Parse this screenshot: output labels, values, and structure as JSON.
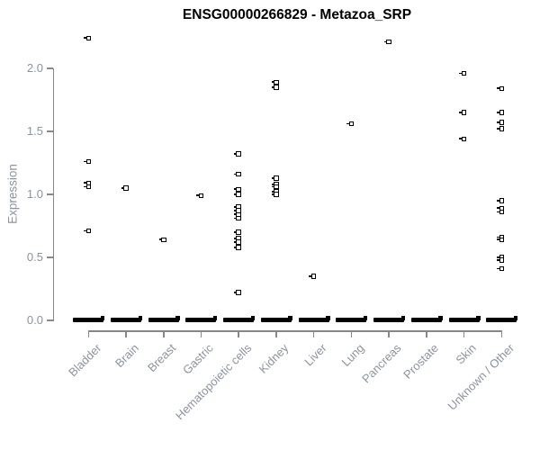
{
  "colors": {
    "background": "#ffffff",
    "title_text": "#000000",
    "axis_text": "#8b939e",
    "axis_line": "#85898e",
    "marker": "#000000"
  },
  "chart_data": {
    "type": "scatter",
    "title": "ENSG00000266829 - Metazoa_SRP",
    "ylabel": "Expression",
    "xlabel": "",
    "ylim": [
      0,
      2.3
    ],
    "yticks": [
      0.0,
      0.5,
      1.0,
      1.5,
      2.0
    ],
    "ytick_labels": [
      "0.0",
      "0.5",
      "1.0",
      "1.5",
      "2.0"
    ],
    "grid": false,
    "legend": false,
    "marker_style": "small open black square",
    "zero_cluster_note": "every category has a dense horizontal dash of many overlapping points at expression 0",
    "categories": [
      "Bladder",
      "Brain",
      "Breast",
      "Gastric",
      "Hematopoietic cells",
      "Kidney",
      "Liver",
      "Lung",
      "Pancreas",
      "Prostate",
      "Skin",
      "Unknown / Other"
    ],
    "series": [
      {
        "name": "sample expression values",
        "points_per_category": [
          [
            2.24,
            1.26,
            1.09,
            1.06,
            0.71
          ],
          [
            1.05
          ],
          [
            0.64
          ],
          [
            0.99
          ],
          [
            1.32,
            1.16,
            1.04,
            1.0,
            0.9,
            0.87,
            0.84,
            0.81,
            0.7,
            0.65,
            0.62,
            0.58,
            0.22
          ],
          [
            1.89,
            1.85,
            1.13,
            1.08,
            1.06,
            1.02,
            1.0
          ],
          [
            0.35
          ],
          [
            1.56
          ],
          [
            2.21
          ],
          [],
          [
            1.96,
            1.65,
            1.44
          ],
          [
            1.84,
            1.65,
            1.57,
            1.52,
            0.95,
            0.89,
            0.86,
            0.66,
            0.64,
            0.5,
            0.48,
            0.41
          ]
        ],
        "zero_cluster_per_category": [
          true,
          true,
          true,
          true,
          true,
          true,
          true,
          true,
          true,
          true,
          true,
          true
        ]
      }
    ]
  }
}
